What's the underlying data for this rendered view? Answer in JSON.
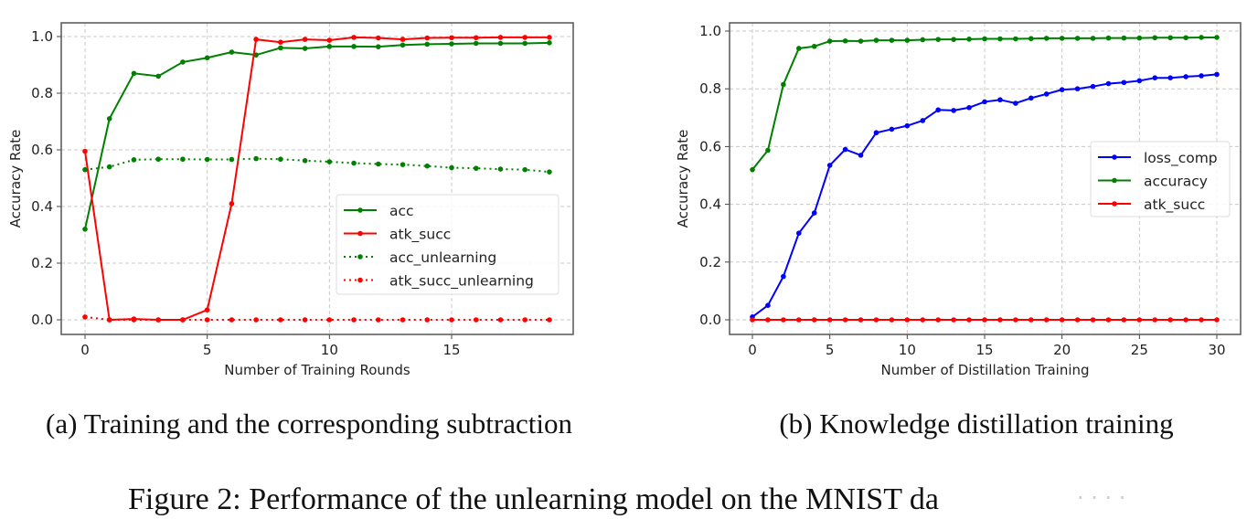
{
  "chart_data": [
    {
      "type": "line",
      "title": "",
      "xlabel": "Number of Training Rounds",
      "ylabel": "Accuracy Rate",
      "xlim": [
        -1,
        20
      ],
      "ylim": [
        -0.05,
        1.05
      ],
      "xticks": [
        0,
        5,
        10,
        15
      ],
      "yticks": [
        0.0,
        0.2,
        0.4,
        0.6,
        0.8,
        1.0
      ],
      "ytick_labels": [
        "0.0",
        "0.2",
        "0.4",
        "0.6",
        "0.8",
        "1.0"
      ],
      "grid": true,
      "legend_placement": "center-right",
      "x": [
        0,
        1,
        2,
        3,
        4,
        5,
        6,
        7,
        8,
        9,
        10,
        11,
        12,
        13,
        14,
        15,
        16,
        17,
        18,
        19
      ],
      "series": [
        {
          "name": "acc",
          "color": "#008000",
          "style": "solid",
          "values": [
            0.32,
            0.71,
            0.87,
            0.86,
            0.91,
            0.925,
            0.945,
            0.935,
            0.96,
            0.958,
            0.965,
            0.965,
            0.964,
            0.97,
            0.973,
            0.974,
            0.976,
            0.976,
            0.976,
            0.978
          ]
        },
        {
          "name": "atk_succ",
          "color": "#ff0000",
          "style": "solid",
          "values": [
            0.595,
            0.0,
            0.003,
            0.0,
            0.0,
            0.035,
            0.41,
            0.99,
            0.98,
            0.99,
            0.987,
            0.997,
            0.995,
            0.99,
            0.995,
            0.996,
            0.996,
            0.997,
            0.997,
            0.997
          ]
        },
        {
          "name": "acc_unlearning",
          "color": "#008000",
          "style": "dotted",
          "values": [
            0.53,
            0.54,
            0.565,
            0.567,
            0.567,
            0.566,
            0.566,
            0.569,
            0.567,
            0.562,
            0.558,
            0.553,
            0.55,
            0.548,
            0.543,
            0.537,
            0.535,
            0.532,
            0.53,
            0.522
          ]
        },
        {
          "name": "atk_succ_unlearning",
          "color": "#ff0000",
          "style": "dotted",
          "values": [
            0.01,
            0,
            0,
            0,
            0,
            0,
            0,
            0,
            0,
            0,
            0,
            0,
            0,
            0,
            0,
            0,
            0,
            0,
            0,
            0
          ]
        }
      ]
    },
    {
      "type": "line",
      "title": "",
      "xlabel": "Number of Distillation Training",
      "ylabel": "Accuracy Rate",
      "xlim": [
        -1.5,
        31.5
      ],
      "ylim": [
        -0.05,
        1.05
      ],
      "xticks": [
        0,
        5,
        10,
        15,
        20,
        25,
        30
      ],
      "yticks": [
        0.0,
        0.2,
        0.4,
        0.6,
        0.8,
        1.0
      ],
      "ytick_labels": [
        "0.0",
        "0.2",
        "0.4",
        "0.6",
        "0.8",
        "1.0"
      ],
      "grid": true,
      "legend_placement": "center-right",
      "x": [
        0,
        1,
        2,
        3,
        4,
        5,
        6,
        7,
        8,
        9,
        10,
        11,
        12,
        13,
        14,
        15,
        16,
        17,
        18,
        19,
        20,
        21,
        22,
        23,
        24,
        25,
        26,
        27,
        28,
        29,
        30
      ],
      "series": [
        {
          "name": "loss_comp",
          "color": "#0000ff",
          "style": "solid",
          "values": [
            0.01,
            0.05,
            0.15,
            0.3,
            0.37,
            0.535,
            0.59,
            0.57,
            0.648,
            0.66,
            0.672,
            0.69,
            0.727,
            0.725,
            0.735,
            0.755,
            0.762,
            0.75,
            0.768,
            0.782,
            0.797,
            0.8,
            0.808,
            0.818,
            0.822,
            0.828,
            0.838,
            0.838,
            0.842,
            0.845,
            0.85
          ]
        },
        {
          "name": "accuracy",
          "color": "#008000",
          "style": "solid",
          "values": [
            0.52,
            0.587,
            0.815,
            0.94,
            0.947,
            0.965,
            0.966,
            0.965,
            0.968,
            0.968,
            0.968,
            0.97,
            0.971,
            0.971,
            0.972,
            0.973,
            0.973,
            0.973,
            0.974,
            0.975,
            0.975,
            0.975,
            0.975,
            0.976,
            0.976,
            0.976,
            0.977,
            0.977,
            0.977,
            0.978,
            0.978
          ]
        },
        {
          "name": "atk_succ",
          "color": "#ff0000",
          "style": "solid",
          "values": [
            0,
            0,
            0,
            0,
            0,
            0,
            0,
            0,
            0,
            0,
            0,
            0,
            0,
            0,
            0,
            0,
            0,
            0,
            0,
            0,
            0,
            0,
            0,
            0,
            0,
            0,
            0,
            0,
            0,
            0,
            0
          ]
        }
      ]
    }
  ],
  "subcaptions": [
    "(a) Training and the corresponding subtraction",
    "(b) Knowledge distillation training"
  ],
  "caption": "Figure 2: Performance of the unlearning model on the MNIST da",
  "watermark": "· · · ·"
}
